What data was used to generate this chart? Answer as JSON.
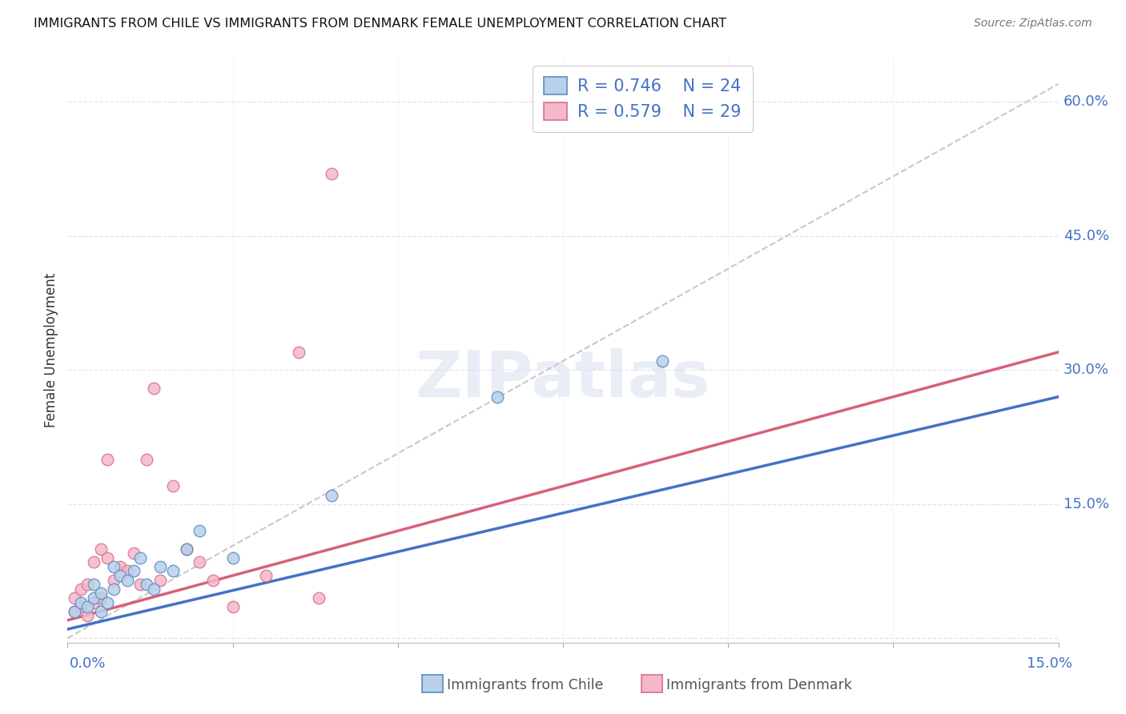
{
  "title": "IMMIGRANTS FROM CHILE VS IMMIGRANTS FROM DENMARK FEMALE UNEMPLOYMENT CORRELATION CHART",
  "source": "Source: ZipAtlas.com",
  "ylabel": "Female Unemployment",
  "xmin": 0.0,
  "xmax": 0.15,
  "ymin": -0.005,
  "ymax": 0.65,
  "right_yticks": [
    0.0,
    0.15,
    0.3,
    0.45,
    0.6
  ],
  "right_yticklabels": [
    "",
    "15.0%",
    "30.0%",
    "45.0%",
    "60.0%"
  ],
  "legend_R_chile": "0.746",
  "legend_N_chile": "24",
  "legend_R_denmark": "0.579",
  "legend_N_denmark": "29",
  "chile_face": "#b8d0e8",
  "chile_edge": "#5b8ec4",
  "denmark_face": "#f4b8c8",
  "denmark_edge": "#d97090",
  "chile_line": "#4472c4",
  "denmark_line": "#d9607a",
  "ref_line_color": "#c8c8c8",
  "grid_color": "#dde4f0",
  "watermark": "ZIPatlas",
  "chile_scatter_x": [
    0.001,
    0.002,
    0.003,
    0.004,
    0.004,
    0.005,
    0.005,
    0.006,
    0.007,
    0.007,
    0.008,
    0.009,
    0.01,
    0.011,
    0.012,
    0.013,
    0.014,
    0.016,
    0.018,
    0.02,
    0.025,
    0.04,
    0.065,
    0.09
  ],
  "chile_scatter_y": [
    0.03,
    0.04,
    0.035,
    0.045,
    0.06,
    0.05,
    0.03,
    0.04,
    0.055,
    0.08,
    0.07,
    0.065,
    0.075,
    0.09,
    0.06,
    0.055,
    0.08,
    0.075,
    0.1,
    0.12,
    0.09,
    0.16,
    0.27,
    0.31
  ],
  "denmark_scatter_x": [
    0.001,
    0.001,
    0.002,
    0.002,
    0.003,
    0.003,
    0.004,
    0.004,
    0.005,
    0.005,
    0.006,
    0.006,
    0.007,
    0.008,
    0.009,
    0.01,
    0.011,
    0.012,
    0.013,
    0.014,
    0.016,
    0.018,
    0.02,
    0.022,
    0.025,
    0.03,
    0.035,
    0.038,
    0.04
  ],
  "denmark_scatter_y": [
    0.03,
    0.045,
    0.035,
    0.055,
    0.025,
    0.06,
    0.04,
    0.085,
    0.045,
    0.1,
    0.09,
    0.2,
    0.065,
    0.08,
    0.075,
    0.095,
    0.06,
    0.2,
    0.28,
    0.065,
    0.17,
    0.1,
    0.085,
    0.065,
    0.035,
    0.07,
    0.32,
    0.045,
    0.52
  ],
  "chile_trend_x": [
    0.0,
    0.15
  ],
  "chile_trend_y": [
    0.01,
    0.27
  ],
  "denmark_trend_x": [
    0.0,
    0.15
  ],
  "denmark_trend_y": [
    0.02,
    0.32
  ],
  "ref_line_x": [
    0.0,
    0.15
  ],
  "ref_line_y": [
    0.0,
    0.62
  ]
}
